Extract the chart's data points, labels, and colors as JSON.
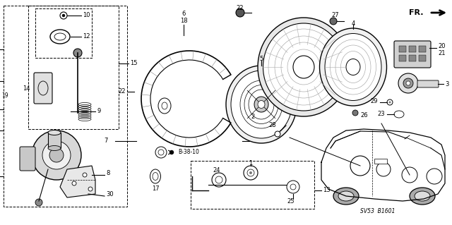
{
  "bg_color": "#ffffff",
  "diagram_code": "SV53  B1601",
  "fr_label": "FR.",
  "line_color": "#000000",
  "gray_light": "#cccccc",
  "gray_mid": "#999999",
  "gray_dark": "#555555"
}
